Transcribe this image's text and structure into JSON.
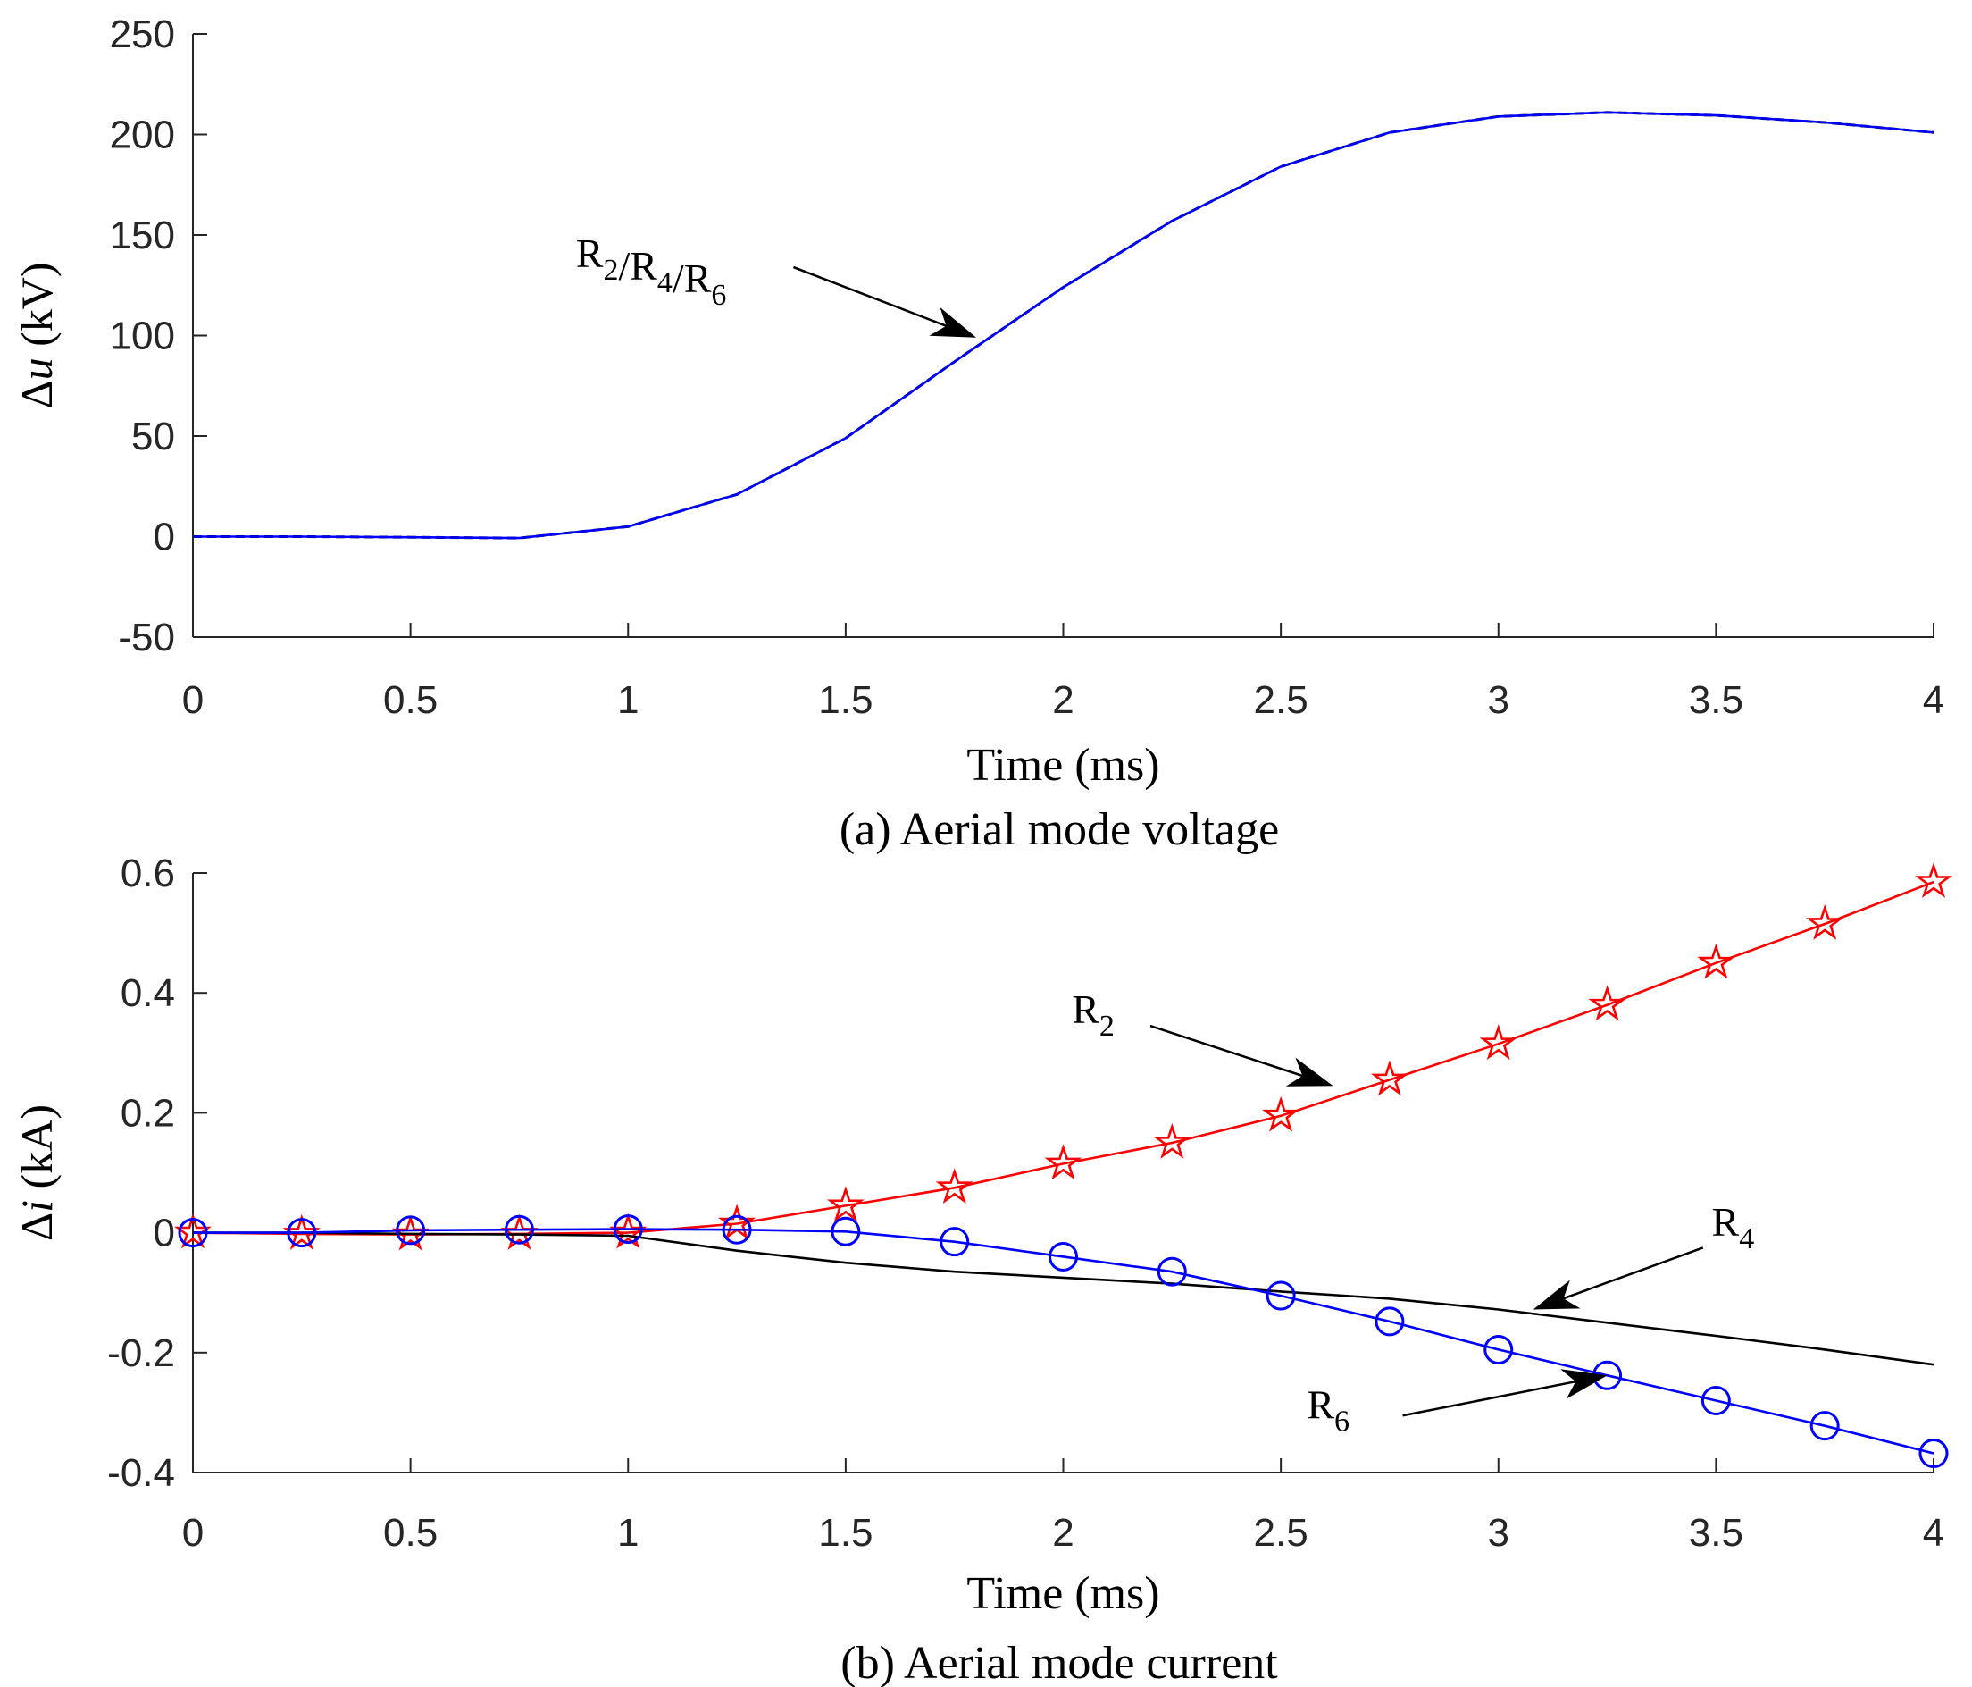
{
  "chart_data": [
    {
      "type": "line",
      "caption": "(a) Aerial mode voltage",
      "xlabel": "Time (ms)",
      "ylabel_delta": "Δ",
      "ylabel_var": "u",
      "ylabel_unit": "(kV)",
      "xlim": [
        0,
        4
      ],
      "ylim": [
        -50,
        250
      ],
      "xticks": [
        0,
        0.5,
        1,
        1.5,
        2,
        2.5,
        3,
        3.5,
        4
      ],
      "xtick_labels": [
        "0",
        "0.5",
        "1",
        "1.5",
        "2",
        "2.5",
        "3",
        "3.5",
        "4"
      ],
      "yticks": [
        -50,
        0,
        50,
        100,
        150,
        200,
        250
      ],
      "ytick_labels": [
        "-50",
        "0",
        "50",
        "100",
        "150",
        "200",
        "250"
      ],
      "series": [
        {
          "name": "R2/R4/R6",
          "color": "#0000ff",
          "x": [
            0,
            0.25,
            0.5,
            0.75,
            1,
            1.25,
            1.5,
            1.75,
            2,
            2.25,
            2.5,
            2.75,
            3,
            3.25,
            3.5,
            3.75,
            4
          ],
          "values": [
            0,
            0,
            -0.3,
            -0.7,
            5,
            21,
            49,
            87,
            124,
            157,
            184,
            201,
            209,
            211,
            209.5,
            206,
            201
          ]
        }
      ],
      "annotations": [
        {
          "id": "a1",
          "base": "R",
          "parts": [
            [
              "",
              "2"
            ],
            [
              "/R",
              "4"
            ],
            [
              "/R",
              "6"
            ]
          ],
          "at": [
            1.8,
            99
          ],
          "from": [
            1.38,
            134
          ],
          "text_at": [
            0.88,
            134
          ]
        }
      ]
    },
    {
      "type": "line",
      "caption": "(b) Aerial mode current",
      "xlabel": "Time (ms)",
      "ylabel_delta": "Δ",
      "ylabel_var": "i",
      "ylabel_unit": "(kA)",
      "xlim": [
        0,
        4
      ],
      "ylim": [
        -0.4,
        0.6
      ],
      "xticks": [
        0,
        0.5,
        1,
        1.5,
        2,
        2.5,
        3,
        3.5,
        4
      ],
      "xtick_labels": [
        "0",
        "0.5",
        "1",
        "1.5",
        "2",
        "2.5",
        "3",
        "3.5",
        "4"
      ],
      "yticks": [
        -0.4,
        -0.2,
        0,
        0.2,
        0.4,
        0.6
      ],
      "ytick_labels": [
        "-0.4",
        "-0.2",
        "0",
        "0.2",
        "0.4",
        "0.6"
      ],
      "series": [
        {
          "name": "R2",
          "color": "#ff0000",
          "marker": "star",
          "x": [
            0,
            0.25,
            0.5,
            0.75,
            1,
            1.25,
            1.5,
            1.75,
            2,
            2.25,
            2.5,
            2.75,
            3,
            3.25,
            3.5,
            3.75,
            4
          ],
          "values": [
            0,
            -0.002,
            -0.003,
            -0.002,
            0,
            0.015,
            0.045,
            0.075,
            0.115,
            0.15,
            0.195,
            0.255,
            0.315,
            0.38,
            0.45,
            0.515,
            0.585
          ]
        },
        {
          "name": "R4",
          "color": "#000000",
          "marker": "none",
          "x": [
            0,
            0.25,
            0.5,
            0.75,
            1,
            1.25,
            1.5,
            1.75,
            2,
            2.25,
            2.5,
            2.75,
            3,
            3.25,
            3.5,
            3.75,
            4
          ],
          "values": [
            0,
            0,
            -0.002,
            -0.003,
            -0.005,
            -0.03,
            -0.05,
            -0.065,
            -0.075,
            -0.085,
            -0.098,
            -0.11,
            -0.128,
            -0.15,
            -0.172,
            -0.195,
            -0.22
          ]
        },
        {
          "name": "R6",
          "color": "#0000ff",
          "marker": "circle",
          "x": [
            0,
            0.25,
            0.5,
            0.75,
            1,
            1.25,
            1.5,
            1.75,
            2,
            2.25,
            2.5,
            2.75,
            3,
            3.25,
            3.5,
            3.75,
            4
          ],
          "values": [
            0,
            0,
            0.004,
            0.005,
            0.006,
            0.005,
            0.002,
            -0.015,
            -0.04,
            -0.065,
            -0.105,
            -0.148,
            -0.195,
            -0.238,
            -0.28,
            -0.322,
            -0.368
          ]
        }
      ],
      "annotations": [
        {
          "id": "b1",
          "base": "R",
          "parts": [
            [
              "",
              "2"
            ]
          ],
          "at": [
            2.62,
            0.245
          ],
          "from": [
            2.2,
            0.345
          ],
          "text_at": [
            2.02,
            0.35
          ]
        },
        {
          "id": "b2",
          "base": "R",
          "parts": [
            [
              "",
              "4"
            ]
          ],
          "at": [
            3.08,
            -0.128
          ],
          "from": [
            3.47,
            -0.025
          ],
          "text_at": [
            3.49,
            -0.005
          ]
        },
        {
          "id": "b3",
          "base": "R",
          "parts": [
            [
              "",
              "6"
            ]
          ],
          "at": [
            3.25,
            -0.238
          ],
          "from": [
            2.78,
            -0.305
          ],
          "text_at": [
            2.56,
            -0.31
          ]
        }
      ]
    }
  ]
}
